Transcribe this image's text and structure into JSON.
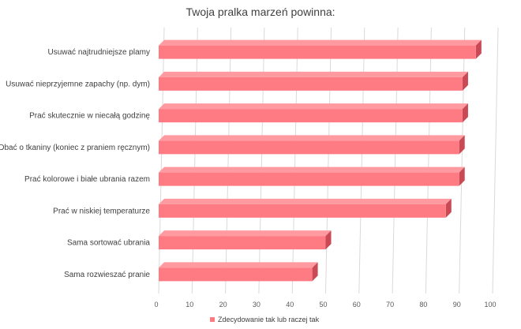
{
  "chart_data": {
    "type": "bar",
    "orientation": "horizontal",
    "title": "Twoja pralka marzeń powinna:",
    "categories": [
      "Usuwać najtrudniejsze plamy",
      "Usuwać nieprzyjemne zapachy (np. dym)",
      "Prać skutecznie w niecałą godzinę",
      "Dbać o tkaniny (koniec z praniem ręcznym)",
      "Prać kolorowe i białe ubrania razem",
      "Prać w niskiej temperaturze",
      "Sama sortować ubrania",
      "Sama rozwieszać pranie"
    ],
    "series": [
      {
        "name": "Zdecydowanie tak lub raczej tak",
        "values": [
          95,
          91,
          91,
          90,
          90,
          86,
          50,
          46
        ]
      }
    ],
    "x_ticks": [
      0,
      10,
      20,
      30,
      40,
      50,
      60,
      70,
      80,
      90,
      100
    ],
    "xlim": [
      0,
      100
    ],
    "grid": true,
    "legend_position": "bottom",
    "colors": {
      "bar_front": "#ff7b84",
      "bar_top": "#ff9aa1",
      "bar_side": "#c94a55",
      "grid": "#d9d9d9",
      "text": "#404040"
    }
  }
}
